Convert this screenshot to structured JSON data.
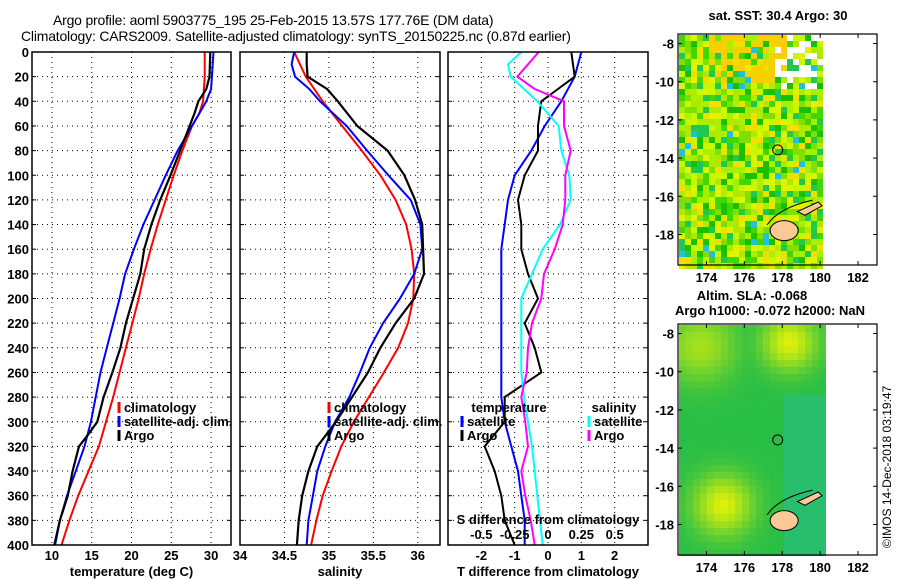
{
  "header": {
    "line1": "Argo profile: aoml 5903775_195 25-Feb-2015 13.57S 177.76E (DM data)",
    "line2": "Climatology: CARS2009. Satellite-adjusted climatology: synTS_20150225.nc (0.87d earlier)"
  },
  "copyright": "©IMOS 14-Dec-2018 03:19:47",
  "colors": {
    "climatology": "#ff0000",
    "satellite": "#0000ff",
    "argo": "#000000",
    "s_satellite": "#00ffff",
    "s_argo": "#ff00ff"
  },
  "chart_data": [
    {
      "type": "line",
      "id": "temperature",
      "xlabel": "temperature (deg C)",
      "ylabel": "",
      "xlim": [
        7.5,
        32.5
      ],
      "ylim": [
        400,
        0
      ],
      "xticks": [
        10,
        15,
        20,
        25,
        30
      ],
      "yticks": [
        0,
        20,
        40,
        60,
        80,
        100,
        120,
        140,
        160,
        180,
        200,
        220,
        240,
        260,
        280,
        300,
        320,
        340,
        360,
        380,
        400
      ],
      "grid": true,
      "legend": {
        "placement": "right-middle",
        "entries": [
          "climatology",
          "satellite-adj. clim.",
          "Argo"
        ]
      },
      "series": [
        {
          "name": "climatology",
          "color": "#ff0000",
          "depth": [
            0,
            20,
            40,
            50,
            60,
            80,
            100,
            120,
            140,
            160,
            180,
            200,
            220,
            240,
            260,
            280,
            300,
            320,
            340,
            360,
            380,
            400
          ],
          "values": [
            29.2,
            29.2,
            29.0,
            28.5,
            27.6,
            26.4,
            25.3,
            24.3,
            23.3,
            22.4,
            21.6,
            20.9,
            20.1,
            19.3,
            18.5,
            17.7,
            16.8,
            15.9,
            14.6,
            13.3,
            12.2,
            11.2
          ]
        },
        {
          "name": "satellite-adj. clim.",
          "color": "#0000ff",
          "depth": [
            0,
            20,
            30,
            40,
            50,
            60,
            80,
            100,
            120,
            140,
            160,
            180,
            200,
            220,
            240,
            260,
            280,
            300,
            320,
            340,
            360,
            380,
            400
          ],
          "values": [
            30.3,
            30.1,
            30.0,
            29.4,
            28.5,
            27.6,
            25.8,
            24.3,
            22.9,
            21.5,
            20.3,
            19.2,
            18.5,
            17.7,
            16.9,
            16.1,
            15.5,
            14.9,
            14.1,
            13.0,
            11.9,
            11.0,
            10.4
          ]
        },
        {
          "name": "Argo",
          "color": "#000000",
          "depth": [
            0,
            20,
            30,
            40,
            50,
            60,
            80,
            100,
            120,
            140,
            160,
            180,
            200,
            220,
            240,
            260,
            280,
            300,
            310,
            320,
            330,
            340,
            360,
            380,
            400
          ],
          "values": [
            29.9,
            29.8,
            29.4,
            28.4,
            27.9,
            27.3,
            26.1,
            24.9,
            23.6,
            22.5,
            21.6,
            21.1,
            20.2,
            19.3,
            18.6,
            17.6,
            16.5,
            15.7,
            14.6,
            13.4,
            13.0,
            12.6,
            12.0,
            11.0,
            10.3
          ]
        }
      ]
    },
    {
      "type": "line",
      "id": "salinity",
      "xlabel": "salinity",
      "ylabel": "",
      "xlim": [
        34,
        36.25
      ],
      "ylim": [
        400,
        0
      ],
      "xticks": [
        34,
        34.5,
        35,
        35.5,
        36
      ],
      "grid": true,
      "legend": {
        "placement": "right-middle",
        "entries": [
          "climatology",
          "satellite-adj. clim.",
          "Argo"
        ]
      },
      "series": [
        {
          "name": "climatology",
          "color": "#ff0000",
          "depth": [
            0,
            20,
            40,
            60,
            80,
            100,
            120,
            140,
            160,
            180,
            200,
            220,
            240,
            260,
            280,
            300,
            320,
            340,
            360,
            380,
            400
          ],
          "values": [
            34.61,
            34.74,
            34.93,
            35.15,
            35.37,
            35.58,
            35.75,
            35.87,
            35.93,
            35.96,
            35.95,
            35.89,
            35.78,
            35.62,
            35.45,
            35.28,
            35.14,
            35.03,
            34.93,
            34.86,
            34.8
          ]
        },
        {
          "name": "satellite-adj. clim.",
          "color": "#0000ff",
          "depth": [
            0,
            10,
            20,
            30,
            40,
            60,
            80,
            100,
            120,
            140,
            160,
            180,
            200,
            220,
            240,
            260,
            280,
            300,
            320,
            340,
            360,
            380,
            400
          ],
          "values": [
            34.61,
            34.58,
            34.62,
            34.78,
            34.9,
            35.2,
            35.43,
            35.67,
            35.92,
            36.03,
            36.05,
            35.96,
            35.8,
            35.61,
            35.46,
            35.35,
            35.23,
            35.07,
            34.96,
            34.87,
            34.82,
            34.77,
            34.75
          ]
        },
        {
          "name": "Argo",
          "color": "#000000",
          "depth": [
            0,
            10,
            20,
            30,
            40,
            60,
            80,
            100,
            120,
            140,
            160,
            180,
            200,
            220,
            240,
            260,
            280,
            300,
            320,
            340,
            360,
            380,
            400
          ],
          "values": [
            34.75,
            34.75,
            34.76,
            34.98,
            35.1,
            35.32,
            35.66,
            35.85,
            35.97,
            36.05,
            36.06,
            36.07,
            35.96,
            35.75,
            35.58,
            35.44,
            35.26,
            35.08,
            34.87,
            34.77,
            34.7,
            34.66,
            34.64
          ]
        }
      ]
    },
    {
      "type": "line",
      "id": "differences",
      "xlabel": "T difference from climatology",
      "xlabel_top": "S difference from climatology",
      "xlim_T": [
        -3,
        3
      ],
      "xlim_S": [
        -0.75,
        0.75
      ],
      "ylim": [
        400,
        0
      ],
      "xticks_T": [
        -2,
        -1,
        0,
        1,
        2
      ],
      "xticks_S": [
        -0.5,
        -0.25,
        0,
        0.25,
        0.5
      ],
      "grid": true,
      "legend": {
        "placement": "lower-middle",
        "groups": [
          {
            "title": "temperature",
            "entries": [
              "satellite",
              "Argo"
            ]
          },
          {
            "title": "salinity",
            "entries": [
              "satellite",
              "Argo"
            ]
          }
        ]
      },
      "series": [
        {
          "name": "T satellite",
          "axis": "T",
          "color": "#0000ff",
          "depth": [
            0,
            20,
            40,
            60,
            80,
            100,
            120,
            140,
            160,
            180,
            200,
            220,
            240,
            260,
            280,
            300,
            320,
            340,
            360,
            380,
            400
          ],
          "values": [
            1.0,
            0.8,
            0.4,
            -0.1,
            -0.5,
            -1.0,
            -1.2,
            -1.3,
            -1.4,
            -1.4,
            -1.4,
            -1.4,
            -1.4,
            -1.4,
            -1.4,
            -1.3,
            -1.1,
            -0.9,
            -0.8,
            -0.7,
            -0.7
          ]
        },
        {
          "name": "T Argo",
          "axis": "T",
          "color": "#000000",
          "depth": [
            0,
            20,
            30,
            40,
            60,
            80,
            100,
            120,
            140,
            160,
            180,
            200,
            220,
            240,
            260,
            280,
            300,
            320,
            340,
            360,
            380,
            400
          ],
          "values": [
            0.7,
            0.8,
            0.3,
            -0.2,
            -0.3,
            -0.3,
            -0.7,
            -0.9,
            -0.8,
            -0.8,
            -0.6,
            -0.3,
            -0.7,
            -0.4,
            -0.2,
            -1.3,
            -1.3,
            -1.9,
            -1.6,
            -1.4,
            -1.3,
            -1.0
          ]
        },
        {
          "name": "S satellite",
          "axis": "S",
          "color": "#00ffff",
          "depth": [
            0,
            10,
            20,
            40,
            60,
            80,
            100,
            120,
            140,
            160,
            180,
            200,
            220,
            240,
            260,
            280,
            300,
            320,
            340,
            360,
            380,
            400
          ],
          "values": [
            -0.2,
            -0.3,
            -0.28,
            -0.08,
            0.08,
            0.1,
            0.16,
            0.17,
            0.09,
            -0.04,
            -0.12,
            -0.2,
            -0.2,
            -0.2,
            -0.2,
            -0.18,
            -0.15,
            -0.12,
            -0.1,
            -0.08,
            -0.06,
            -0.04
          ]
        },
        {
          "name": "S Argo",
          "axis": "S",
          "color": "#ff00ff",
          "depth": [
            0,
            20,
            30,
            40,
            60,
            80,
            100,
            120,
            140,
            160,
            180,
            200,
            220,
            240,
            260,
            280,
            300,
            320,
            340,
            360,
            380,
            400
          ],
          "values": [
            -0.07,
            -0.23,
            -0.1,
            0.12,
            0.12,
            0.17,
            0.13,
            0.13,
            0.11,
            0.05,
            -0.03,
            -0.05,
            -0.12,
            -0.15,
            -0.16,
            -0.2,
            -0.17,
            -0.15,
            -0.2,
            -0.17,
            -0.13,
            -0.1
          ]
        }
      ]
    },
    {
      "type": "heatmap",
      "id": "sst-map",
      "title": "sat. SST: 30.4 Argo: 30",
      "xticks": [
        174,
        176,
        178,
        180,
        182
      ],
      "yticks": [
        -8,
        -10,
        -12,
        -14,
        -16,
        -18
      ],
      "xlim": [
        172.5,
        183
      ],
      "ylim": [
        -19.6,
        -7.5
      ],
      "profile_location": {
        "lon": 177.76,
        "lat": -13.57
      }
    },
    {
      "type": "heatmap",
      "id": "sla-map",
      "title": "Altim. SLA: -0.068",
      "subtitle": "Argo h1000: -0.072 h2000: NaN",
      "xticks": [
        174,
        176,
        178,
        180,
        182
      ],
      "yticks": [
        -8,
        -10,
        -12,
        -14,
        -16,
        -18
      ],
      "xlim": [
        172.5,
        183
      ],
      "ylim": [
        -19.6,
        -7.5
      ],
      "profile_location": {
        "lon": 177.76,
        "lat": -13.57
      }
    }
  ]
}
